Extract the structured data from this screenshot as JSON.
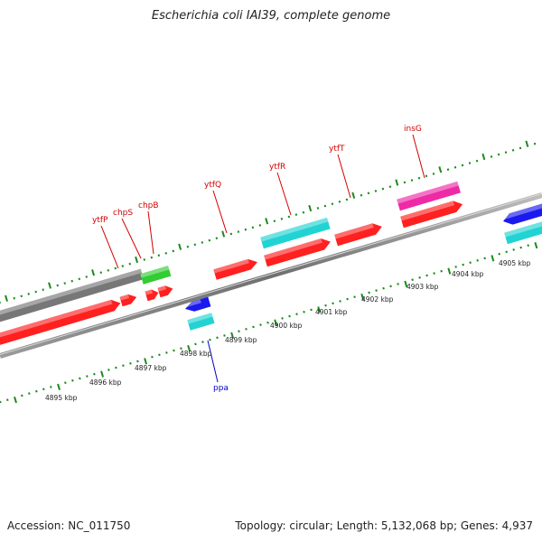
{
  "title": "Escherichia coli IAI39, complete genome",
  "footer": {
    "accession": "Accession: NC_011750",
    "summary": "Topology: circular; Length: 5,132,068 bp; Genes: 4,937"
  },
  "colors": {
    "cds_red": "#ff2020",
    "gray": "#777777",
    "green": "#33cc33",
    "blue": "#1a1aee",
    "cyan": "#22d3d3",
    "magenta": "#ee2aa6",
    "tick_green": "#1b8a1b",
    "forward_label": "#d40000",
    "reverse_label": "#0000cc"
  },
  "genes_top": [
    {
      "name": "ytfP"
    },
    {
      "name": "chpS"
    },
    {
      "name": "chpB"
    },
    {
      "name": "ytfQ"
    },
    {
      "name": "ytfR"
    },
    {
      "name": "ytfT"
    },
    {
      "name": "insG"
    }
  ],
  "genes_bottom": [
    {
      "name": "ppa"
    }
  ],
  "kbp_labels": [
    "4895 kbp",
    "4896 kbp",
    "4897 kbp",
    "4898 kbp",
    "4899 kbp",
    "4900 kbp",
    "4901 kbp",
    "4902 kbp",
    "4903 kbp",
    "4904 kbp",
    "4905 kbp"
  ]
}
